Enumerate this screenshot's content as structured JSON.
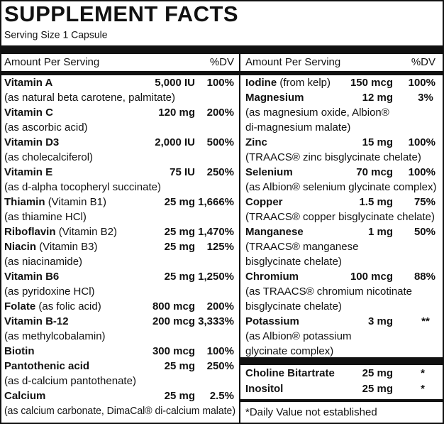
{
  "title": "SUPPLEMENT FACTS",
  "serving": "Serving Size  1 Capsule",
  "left": {
    "header": [
      "Amount Per Serving",
      "%DV"
    ],
    "rows": [
      {
        "name": "Vitamin A",
        "amount": "5,000 IU",
        "dv": "100%",
        "notes": [
          "(as natural beta carotene, palmitate)"
        ]
      },
      {
        "name": "Vitamin C",
        "amount": "120 mg",
        "dv": "200%",
        "notes": [
          "(as ascorbic acid)"
        ]
      },
      {
        "name": "Vitamin D3",
        "amount": "2,000 IU",
        "dv": "500%",
        "notes": [
          "(as cholecalciferol)"
        ]
      },
      {
        "name": "Vitamin E",
        "amount": "75 IU",
        "dv": "250%",
        "notes": [
          "(as d-alpha tocopheryl succinate)"
        ]
      },
      {
        "name": "Thiamin",
        "qualifier": "(Vitamin B1)",
        "amount": "25 mg",
        "dv": "1,666%",
        "notes": [
          "(as thiamine HCl)"
        ]
      },
      {
        "name": "Riboflavin",
        "qualifier": "(Vitamin B2)",
        "amount": "25 mg",
        "dv": "1,470%",
        "notes": []
      },
      {
        "name": "Niacin",
        "qualifier": "(Vitamin B3)",
        "amount": "25 mg",
        "dv": "125%",
        "notes": [
          "(as niacinamide)"
        ]
      },
      {
        "name": "Vitamin B6",
        "amount": "25 mg",
        "dv": "1,250%",
        "notes": [
          "(as pyridoxine HCl)"
        ]
      },
      {
        "name": "Folate",
        "qualifier": "(as folic acid)",
        "amount": "800 mcg",
        "dv": "200%",
        "notes": []
      },
      {
        "name": "Vitamin B-12",
        "amount": "200 mcg",
        "dv": "3,333%",
        "notes": [
          "(as methylcobalamin)"
        ]
      },
      {
        "name": "Biotin",
        "amount": "300 mcg",
        "dv": "100%",
        "notes": []
      },
      {
        "name": "Pantothenic acid",
        "amount": "25 mg",
        "dv": "250%",
        "notes": [
          "(as d-calcium pantothenate)"
        ]
      },
      {
        "name": "Calcium",
        "amount": "25 mg",
        "dv": "2.5%",
        "notes": [
          "(as calcium carbonate, DimaCal® di-calcium malate)"
        ]
      }
    ]
  },
  "right": {
    "header": [
      "Amount Per Serving",
      "%DV"
    ],
    "rows": [
      {
        "name": "Iodine",
        "qualifier": "(from kelp)",
        "amount": "150 mcg",
        "dv": "100%",
        "notes": []
      },
      {
        "name": "Magnesium",
        "amount": "12 mg",
        "dv": "3%",
        "notes": [
          "(as magnesium oxide, Albion®",
          "di-magnesium malate)"
        ]
      },
      {
        "name": "Zinc",
        "amount": "15 mg",
        "dv": "100%",
        "notes": [
          "(TRAACS® zinc bisglycinate chelate)"
        ]
      },
      {
        "name": "Selenium",
        "amount": "70 mcg",
        "dv": "100%",
        "notes": [
          "(as Albion® selenium glycinate complex)"
        ]
      },
      {
        "name": "Copper",
        "amount": "1.5 mg",
        "dv": "75%",
        "notes": [
          "(TRAACS® copper bisglycinate chelate)"
        ]
      },
      {
        "name": "Manganese",
        "amount": "1 mg",
        "dv": "50%",
        "notes": [
          "(TRAACS® manganese",
          "bisglycinate chelate)"
        ]
      },
      {
        "name": "Chromium",
        "amount": "100 mcg",
        "dv": "88%",
        "notes": [
          "(as TRAACS® chromium nicotinate",
          "bisglycinate chelate)"
        ]
      },
      {
        "name": "Potassium",
        "amount": "3 mg",
        "dv": "**",
        "notes": [
          "(as Albion® potassium",
          "glycinate complex)"
        ]
      }
    ],
    "extra_rows": [
      {
        "name": "Choline Bitartrate",
        "amount": "25 mg",
        "dv": "*"
      },
      {
        "name": "Inositol",
        "amount": "25 mg",
        "dv": "*"
      }
    ],
    "footnote": "*Daily Value not established"
  }
}
